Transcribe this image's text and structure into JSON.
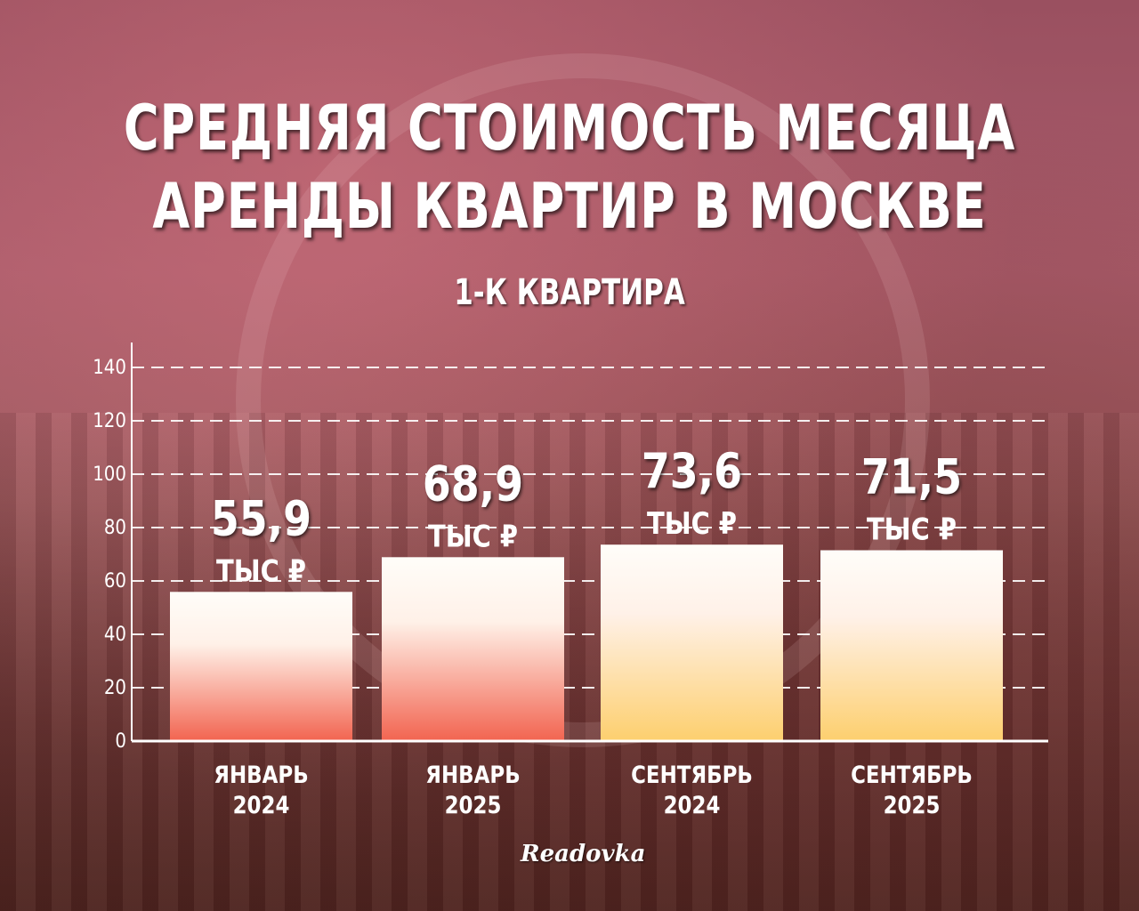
{
  "title_lines": [
    "СРЕДНЯЯ СТОИМОСТЬ МЕСЯЦА",
    "АРЕНДЫ КВАРТИР В МОСКВЕ"
  ],
  "brand": "Readovka",
  "chart_data": {
    "type": "bar",
    "title": "СРЕДНЯЯ СТОИМОСТЬ МЕСЯЦА АРЕНДЫ КВАРТИР В МОСКВЕ",
    "subtitle": "1-К КВАРТИРА",
    "categories": [
      [
        "ЯНВАРЬ",
        "2024"
      ],
      [
        "ЯНВАРЬ",
        "2025"
      ],
      [
        "СЕНТЯБРЬ",
        "2024"
      ],
      [
        "СЕНТЯБРЬ",
        "2025"
      ]
    ],
    "values": [
      55.9,
      68.9,
      73.6,
      71.5
    ],
    "value_labels": [
      "55,9",
      "68,9",
      "73,6",
      "71,5"
    ],
    "unit_label": "ТЫС ₽",
    "ylim": [
      0,
      140
    ],
    "yticks": [
      0,
      20,
      40,
      60,
      80,
      100,
      120,
      140
    ],
    "grid": true,
    "bar_colors": [
      "#f26450",
      "#f26450",
      "#fdcf6e",
      "#fdcf6e"
    ]
  }
}
